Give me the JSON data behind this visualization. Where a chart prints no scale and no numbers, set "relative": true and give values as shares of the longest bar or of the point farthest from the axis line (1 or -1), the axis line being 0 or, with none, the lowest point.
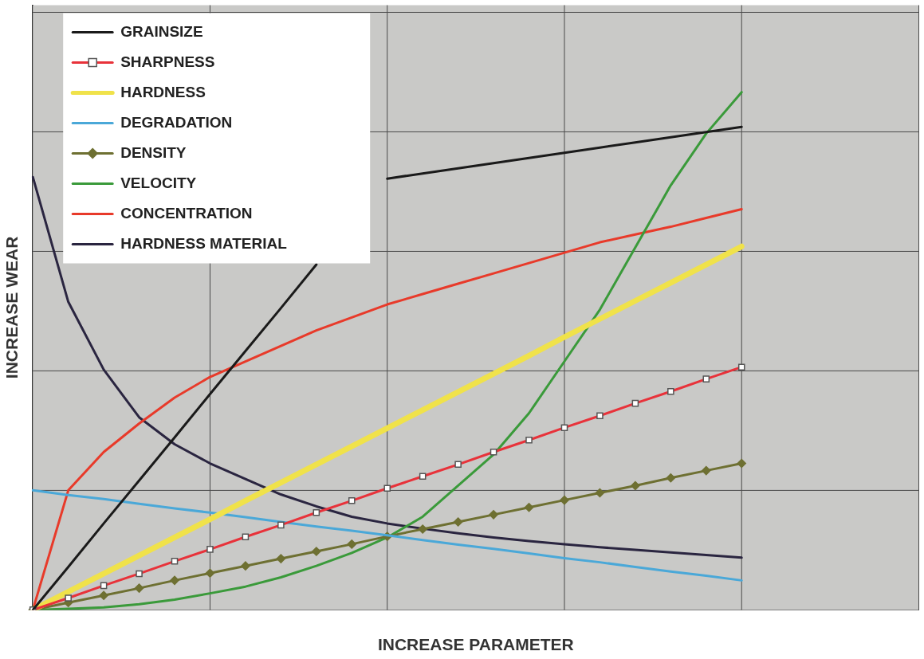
{
  "chart_data": {
    "type": "line",
    "relative": true,
    "xlabel": "INCREASE PARAMETER",
    "ylabel": "INCREASE WEAR",
    "grid": true,
    "legend": "top left",
    "marker": "none",
    "line_style": "solid",
    "categories": [
      null,
      null,
      null,
      null,
      null,
      null,
      null,
      null,
      null,
      null,
      null,
      null,
      null,
      null,
      null,
      null,
      null,
      null,
      null,
      null,
      null,
      null,
      null,
      null,
      null,
      null
    ],
    "series": [
      {
        "name": "GRAINSIZE",
        "color": "#1a1a1a",
        "values": [
          0,
          0.083,
          0.167,
          0.25,
          0.333,
          0.417,
          0.5,
          0.583,
          0.667,
          null,
          0.833,
          0.843,
          0.853,
          0.863,
          0.873,
          0.883,
          0.893,
          0.903,
          0.913,
          0.923,
          0.933,
          null,
          null,
          null,
          null,
          null
        ]
      },
      {
        "name": "SHARPNESS",
        "color": "#e8323a",
        "marker": "square",
        "values": [
          0,
          0.023,
          0.047,
          0.07,
          0.094,
          0.117,
          0.141,
          0.164,
          0.188,
          0.211,
          0.235,
          0.258,
          0.281,
          0.305,
          0.328,
          0.352,
          0.375,
          0.399,
          0.422,
          0.446,
          0.469,
          null,
          null,
          null,
          null,
          null
        ]
      },
      {
        "name": "HARDNESS",
        "color": "#f0e24a",
        "values": [
          0,
          0.035,
          0.07,
          0.105,
          0.14,
          0.175,
          0.211,
          0.246,
          0.281,
          0.316,
          0.351,
          0.386,
          0.421,
          0.456,
          0.491,
          0.527,
          0.562,
          0.597,
          0.632,
          0.667,
          0.702,
          null,
          null,
          null,
          null,
          null
        ]
      },
      {
        "name": "DEGRADATION",
        "color": "#4aa8d8",
        "values": [
          0.231,
          0.222,
          0.214,
          0.205,
          0.196,
          0.188,
          0.179,
          0.17,
          0.161,
          0.153,
          0.144,
          0.135,
          0.126,
          0.118,
          0.109,
          0.1,
          0.092,
          0.083,
          0.074,
          0.066,
          0.057,
          null,
          null,
          null,
          null,
          null
        ]
      },
      {
        "name": "DENSITY",
        "color": "#6e7032",
        "marker": "diamond",
        "values": [
          0,
          0.014,
          0.028,
          0.042,
          0.057,
          0.071,
          0.085,
          0.099,
          0.113,
          0.127,
          0.142,
          0.156,
          0.17,
          0.184,
          0.198,
          0.212,
          0.226,
          0.24,
          0.255,
          0.269,
          0.283,
          null,
          null,
          null,
          null,
          null
        ]
      },
      {
        "name": "VELOCITY",
        "color": "#3a9a3a",
        "values": [
          0,
          0.002,
          0.005,
          0.011,
          0.02,
          0.032,
          0.045,
          0.063,
          0.085,
          0.11,
          0.14,
          0.18,
          0.24,
          0.3,
          0.38,
          0.48,
          0.58,
          0.7,
          0.82,
          0.92,
          1,
          null,
          null,
          null,
          null,
          null
        ]
      },
      {
        "name": "CONCENTRATION",
        "color": "#e83a2a",
        "values": [
          0,
          0.231,
          0.305,
          0.36,
          0.41,
          0.45,
          0.48,
          0.51,
          0.54,
          0.565,
          0.59,
          0.61,
          0.63,
          0.65,
          0.67,
          0.69,
          0.71,
          0.725,
          0.74,
          0.757,
          0.774,
          null,
          null,
          null,
          null,
          null
        ]
      },
      {
        "name": "HARDNESS MATERIAL",
        "color": "#2a2540",
        "values": [
          0.836,
          0.595,
          0.464,
          0.372,
          0.32,
          0.283,
          0.253,
          0.223,
          0.2,
          0.18,
          0.167,
          0.157,
          0.148,
          0.14,
          0.133,
          0.127,
          0.121,
          0.116,
          0.111,
          0.106,
          0.101,
          null,
          null,
          null,
          null,
          null
        ]
      }
    ]
  }
}
